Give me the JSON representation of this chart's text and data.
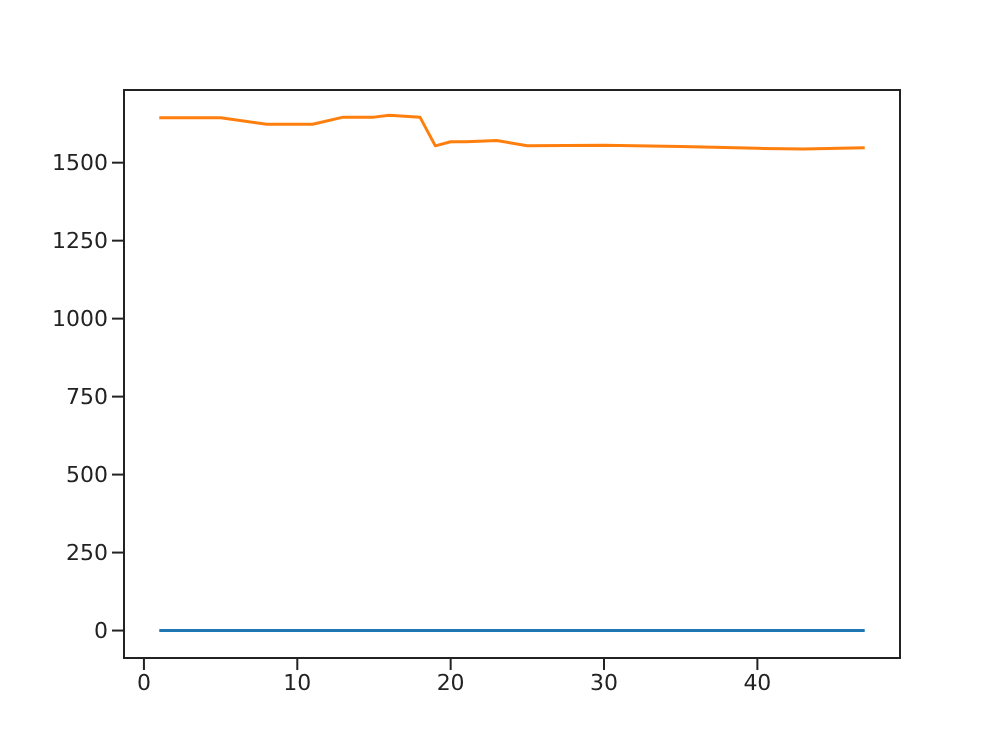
{
  "chart_data": {
    "type": "line",
    "xlim": [
      -1.3,
      49.3
    ],
    "xticks": [
      0,
      10,
      20,
      30,
      40
    ],
    "ylim": [
      -88,
      1733
    ],
    "yticks": [
      0,
      250,
      500,
      750,
      1000,
      1250,
      1500
    ],
    "grid": false,
    "legend": false,
    "marker": "none",
    "line_style": "solid",
    "series": [
      {
        "color": "#1f77b4",
        "x": [
          1,
          47
        ],
        "values": [
          0,
          0
        ]
      },
      {
        "color": "#ff7f0e",
        "x": [
          1,
          5,
          8,
          11,
          13,
          15,
          16,
          18,
          19,
          20,
          21,
          23,
          25,
          30,
          35,
          40,
          43,
          47
        ],
        "values": [
          1644,
          1644,
          1623,
          1623,
          1646,
          1646,
          1652,
          1646,
          1554,
          1567,
          1567,
          1571,
          1554,
          1556,
          1552,
          1546,
          1544,
          1548
        ]
      }
    ]
  }
}
